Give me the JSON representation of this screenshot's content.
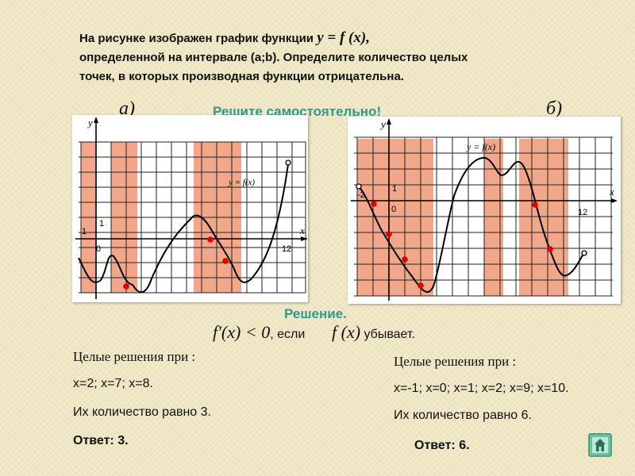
{
  "task": {
    "line1_prefix": "На рисунке изображен график функции ",
    "function": "y = f (x)",
    "line1_suffix": ",",
    "line2": "определенной на интервале (a;b). Определите количество целых",
    "line3": "точек, в которых производная функции отрицательна."
  },
  "label_a": "а)",
  "label_b": "б)",
  "self_solve": "Решите самостоятельно!",
  "graph_a": {
    "y_axis": "y",
    "x_axis": "x",
    "origin": "0",
    "one_y": "1",
    "one_x": "1",
    "x_tick": "12",
    "curve_label": "y = f(x)"
  },
  "graph_b": {
    "y_axis": "y",
    "x_axis": "x",
    "origin": "0",
    "one_y": "1",
    "neg_x": "-2",
    "x_tick": "12",
    "curve_label": "y = f(x)"
  },
  "solution": {
    "heading": "Решение.",
    "derivative": "f′(x) < 0",
    "if_word": ", если",
    "function": "f (x)",
    "decreasing": "убывает."
  },
  "left": {
    "title": "Целые решения при :",
    "solutions": "x=2; x=7; x=8.",
    "count": "Их количество равно 3.",
    "answer": "Ответ: 3."
  },
  "right": {
    "title": "Целые решения при :",
    "solutions": "x=-1; x=0; x=1; x=2; x=9; x=10.",
    "count": "Их количество равно 6.",
    "answer": "Ответ: 6."
  },
  "colors": {
    "band": "#f3a78a",
    "point": "#dd0000",
    "accent": "#2f9a8a"
  },
  "nav_icon": "home-nav-icon"
}
